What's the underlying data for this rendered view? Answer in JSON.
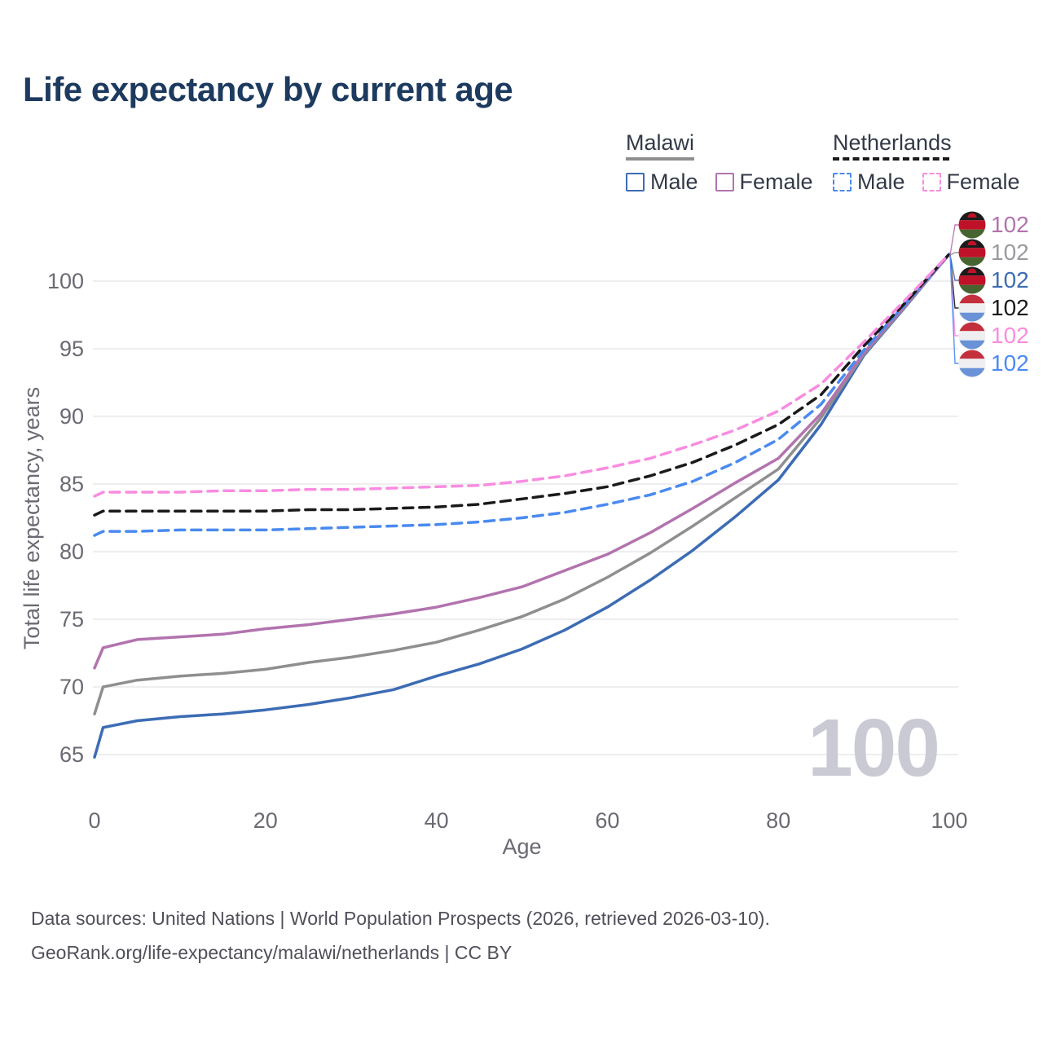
{
  "title": "Life expectancy by current age",
  "watermark": "100",
  "colors": {
    "malawi_male": "#3c6cb4",
    "malawi_female": "#b273ae",
    "malawi_both": "#8f8f8f",
    "netherlands_male": "#4a8af0",
    "netherlands_female": "#f98ce0",
    "netherlands_both": "#1a1a1a",
    "end_label_gray": "#9a9a9f",
    "title_text": "#1d3a5f",
    "legend_text": "#333947",
    "axis_text": "#6a6a73",
    "gridline": "#e9e9ec",
    "watermark_text": "#c9cad3",
    "footer_text": "#50505a"
  },
  "legend": {
    "groups": [
      {
        "label": "Malawi",
        "underline_style": "solid",
        "underline_color": "#8f8f8f",
        "items": [
          {
            "label": "Male",
            "series": "malawi_male",
            "dash": "solid"
          },
          {
            "label": "Female",
            "series": "malawi_female",
            "dash": "solid"
          }
        ]
      },
      {
        "label": "Netherlands",
        "underline_style": "dashed",
        "underline_color": "#1a1a1a",
        "items": [
          {
            "label": "Male",
            "series": "netherlands_male",
            "dash": "dashed"
          },
          {
            "label": "Female",
            "series": "netherlands_female",
            "dash": "dashed"
          }
        ]
      }
    ]
  },
  "end_labels": [
    {
      "value": "102",
      "series": "malawi_female",
      "flag": "malawi",
      "text_color_key": "malawi_female"
    },
    {
      "value": "102",
      "series": "malawi_both",
      "flag": "malawi",
      "text_color_key": "end_label_gray"
    },
    {
      "value": "102",
      "series": "malawi_male",
      "flag": "malawi",
      "text_color_key": "malawi_male"
    },
    {
      "value": "102",
      "series": "netherlands_both",
      "flag": "netherlands",
      "text_color_key": "netherlands_both"
    },
    {
      "value": "102",
      "series": "netherlands_female",
      "flag": "netherlands",
      "text_color_key": "netherlands_female"
    },
    {
      "value": "102",
      "series": "netherlands_male",
      "flag": "netherlands",
      "text_color_key": "netherlands_male"
    }
  ],
  "footer": {
    "line1": "Data sources: United Nations | World Population Prospects (2026, retrieved 2026-03-10).",
    "line2": "GeoRank.org/life-expectancy/malawi/netherlands | CC BY"
  },
  "chart_data": {
    "type": "line",
    "title": "Life expectancy by current age",
    "xlabel": "Age",
    "ylabel": "Total life expectancy, years",
    "xlim": [
      0,
      100
    ],
    "ylim": [
      63.5,
      103.7
    ],
    "x_ticks": [
      0,
      20,
      40,
      60,
      80,
      100
    ],
    "y_ticks": [
      65,
      70,
      75,
      80,
      85,
      90,
      95,
      100
    ],
    "grid": "horizontal-only",
    "legend_position": "top-right",
    "x": [
      0,
      1,
      5,
      10,
      15,
      20,
      25,
      30,
      35,
      40,
      45,
      50,
      55,
      60,
      65,
      70,
      75,
      80,
      85,
      90,
      95,
      100
    ],
    "series": [
      {
        "name": "Malawi Male",
        "key": "malawi_male",
        "style": "solid",
        "values": [
          64.8,
          67.0,
          67.5,
          67.8,
          68.0,
          68.3,
          68.7,
          69.2,
          69.8,
          70.8,
          71.7,
          72.8,
          74.2,
          75.9,
          77.9,
          80.1,
          82.6,
          85.3,
          89.4,
          94.5,
          98.2,
          102
        ]
      },
      {
        "name": "Malawi Both sexes",
        "key": "malawi_both",
        "style": "solid",
        "values": [
          68.0,
          70.0,
          70.5,
          70.8,
          71.0,
          71.3,
          71.8,
          72.2,
          72.7,
          73.3,
          74.2,
          75.2,
          76.5,
          78.1,
          79.9,
          81.9,
          84.0,
          86.1,
          89.9,
          94.6,
          98.25,
          102
        ]
      },
      {
        "name": "Malawi Female",
        "key": "malawi_female",
        "style": "solid",
        "values": [
          71.4,
          72.9,
          73.5,
          73.7,
          73.9,
          74.3,
          74.6,
          75.0,
          75.4,
          75.9,
          76.6,
          77.4,
          78.6,
          79.8,
          81.4,
          83.2,
          85.1,
          86.9,
          90.2,
          94.7,
          98.3,
          102
        ]
      },
      {
        "name": "Netherlands Male",
        "key": "netherlands_male",
        "style": "dashed",
        "values": [
          81.2,
          81.5,
          81.5,
          81.6,
          81.6,
          81.6,
          81.7,
          81.8,
          81.9,
          82.0,
          82.2,
          82.5,
          82.9,
          83.5,
          84.2,
          85.2,
          86.6,
          88.3,
          90.9,
          94.9,
          98.4,
          102
        ]
      },
      {
        "name": "Netherlands Both sexes",
        "key": "netherlands_both",
        "style": "dashed",
        "values": [
          82.7,
          83.0,
          83.0,
          83.0,
          83.0,
          83.0,
          83.1,
          83.1,
          83.2,
          83.3,
          83.5,
          83.9,
          84.3,
          84.8,
          85.6,
          86.6,
          87.9,
          89.4,
          91.6,
          95.2,
          98.5,
          102
        ]
      },
      {
        "name": "Netherlands Female",
        "key": "netherlands_female",
        "style": "dashed",
        "values": [
          84.1,
          84.4,
          84.4,
          84.4,
          84.5,
          84.5,
          84.6,
          84.6,
          84.7,
          84.8,
          84.9,
          85.2,
          85.6,
          86.2,
          86.9,
          87.9,
          89.0,
          90.4,
          92.4,
          95.5,
          98.7,
          102
        ]
      }
    ]
  }
}
